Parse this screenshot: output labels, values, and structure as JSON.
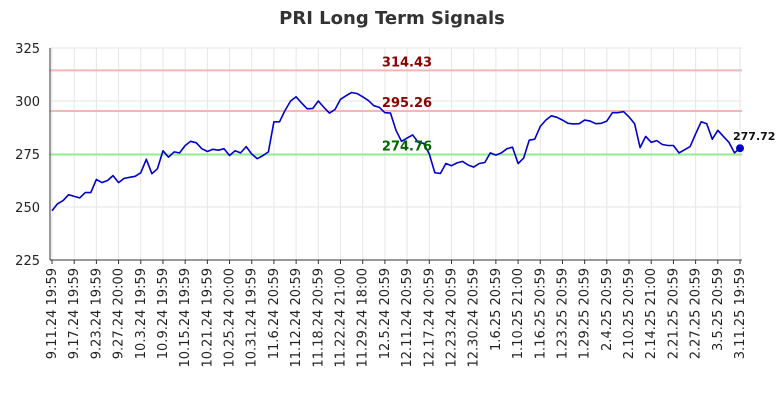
{
  "chart_data": {
    "type": "line",
    "title": "PRI Long Term Signals",
    "xlabel": "",
    "ylabel": "",
    "ylim": [
      225,
      325
    ],
    "y_ticks": [
      "225",
      "250",
      "275",
      "300",
      "325"
    ],
    "x_tick_labels": [
      "9.11.24 19:59",
      "9.17.24 19:59",
      "9.23.24 19:59",
      "9.27.24 20:00",
      "10.3.24 19:59",
      "10.9.24 19:59",
      "10.15.24 19:59",
      "10.21.24 19:59",
      "10.25.24 20:00",
      "10.31.24 19:59",
      "11.6.24 20:59",
      "11.12.24 20:59",
      "11.18.24 20:59",
      "11.22.24 21:00",
      "11.29.24 18:00",
      "12.5.24 20:59",
      "12.11.24 20:59",
      "12.17.24 20:59",
      "12.23.24 20:59",
      "12.30.24 20:59",
      "1.6.25 20:59",
      "1.10.25 21:00",
      "1.16.25 20:59",
      "1.23.25 20:59",
      "1.29.25 20:59",
      "2.4.25 20:59",
      "2.10.25 20:59",
      "2.14.25 21:00",
      "2.21.25 20:59",
      "2.27.25 20:59",
      "3.5.25 20:59",
      "3.11.25 19:59"
    ],
    "grid": true,
    "series": [
      {
        "values": [
          248.2,
          251.5,
          253,
          255.8,
          255,
          254.3,
          256.8,
          256.8,
          263,
          261.5,
          262.5,
          264.8,
          261.5,
          263.5,
          264,
          264.5,
          266.2,
          272.5,
          265.7,
          268,
          276.5,
          273.5,
          276,
          275.5,
          279,
          281,
          280.3,
          277.5,
          276.2,
          277.2,
          276.8,
          277.5,
          274.3,
          276.5,
          275.5,
          278.5,
          275,
          272.8,
          274.2,
          276,
          290.2,
          290.2,
          295.5,
          300,
          302,
          299,
          296.3,
          296.5,
          300,
          297,
          294.3,
          296,
          300.8,
          302.5,
          304,
          303.5,
          302,
          300.3,
          297.8,
          297,
          294.5,
          294.3,
          286.2,
          281,
          282.5,
          284,
          280.5,
          280,
          275,
          266.2,
          265.8,
          270.5,
          269.5,
          270.8,
          271.5,
          269.8,
          268.8,
          270.5,
          271,
          275.5,
          274.5,
          275.5,
          277.5,
          278.2,
          270.5,
          273,
          281.5,
          282,
          288,
          291,
          293,
          292.3,
          291,
          289.5,
          289.2,
          289.3,
          291,
          290.5,
          289.3,
          289.5,
          290.5,
          294.5,
          294.5,
          295,
          292.5,
          289.3,
          278,
          283.3,
          280.5,
          281.3,
          279.5,
          279,
          279,
          275.5,
          277,
          278.5,
          284.5,
          290.2,
          289.3,
          282,
          286.2,
          283.3,
          280.5,
          275.5,
          277.72
        ],
        "color": "#0000cc"
      }
    ],
    "reference_lines": [
      {
        "value": 314.43,
        "label": "314.43",
        "color": "#f4b6b6",
        "label_color": "#8b0000"
      },
      {
        "value": 295.26,
        "label": "295.26",
        "color": "#f4b6b6",
        "label_color": "#8b0000"
      },
      {
        "value": 274.76,
        "label": "274.76",
        "color": "#90ee90",
        "label_color": "#006400"
      }
    ],
    "last_value_label": "277.72"
  }
}
